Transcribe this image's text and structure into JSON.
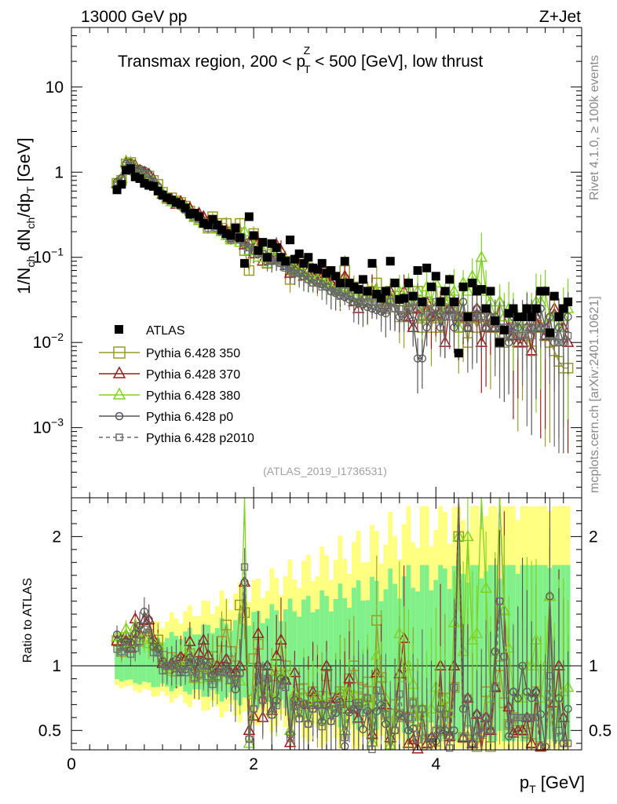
{
  "header": {
    "left": "13000 GeV pp",
    "right": "Z+Jet"
  },
  "side_labels": {
    "rivet": "Rivet 4.1.0, ≥ 100k events",
    "mcplots": "mcplots.cern.ch [arXiv:2401.10621]"
  },
  "watermark": "(ATLAS_2019_I1736531)",
  "colors": {
    "atlas": "#000000",
    "p350": "#9a9a2a",
    "p370": "#9b1c1c",
    "p380": "#7fd320",
    "p0": "#555555",
    "p2010": "#6b6b6b",
    "band_yellow": "#ffff80",
    "band_green": "#7ff08a"
  },
  "chart_data": {
    "type": "scatter",
    "title": "Transmax region, 200 < p_T^Z < 500 [GeV], low thrust",
    "title_parts": {
      "a": "Transmax region, 200 < p",
      "sub": "T",
      "sup": "Z",
      "b": " < 500 [GeV], low thrust"
    },
    "xlabel": "p_T [GeV]",
    "xlabel_parts": {
      "a": "p",
      "sub": "T",
      "b": " [GeV]"
    },
    "ylabel": "1/N_ch dN_ch/dp_T [GeV]",
    "ylabel_parts": {
      "a": "1/N",
      "s1": "ch",
      "b": " dN",
      "s2": "ch",
      "c": "/dp",
      "s3": "T",
      "d": " [GeV]"
    },
    "ratio_ylabel": "Ratio to ATLAS",
    "xlim": [
      0,
      5.6
    ],
    "ylim": [
      0.00015,
      50
    ],
    "ratio_ylim": [
      0.35,
      2.3
    ],
    "xticks": [
      0,
      2,
      4
    ],
    "yticks_main": [
      {
        "value": 10,
        "label": "10",
        "exp": ""
      },
      {
        "value": 1,
        "label": "1",
        "exp": ""
      },
      {
        "value": 0.1,
        "label": "10",
        "exp": "−1"
      },
      {
        "value": 0.01,
        "label": "10",
        "exp": "−2"
      },
      {
        "value": 0.001,
        "label": "10",
        "exp": "−3"
      }
    ],
    "yticks_ratio": [
      {
        "value": 2,
        "label": "2"
      },
      {
        "value": 1,
        "label": "1"
      },
      {
        "value": 0.5,
        "label": "0.5"
      }
    ],
    "x": [
      0.5,
      0.55,
      0.6,
      0.65,
      0.7,
      0.75,
      0.8,
      0.85,
      0.9,
      0.95,
      1.0,
      1.05,
      1.1,
      1.15,
      1.2,
      1.25,
      1.3,
      1.35,
      1.4,
      1.45,
      1.5,
      1.55,
      1.6,
      1.65,
      1.7,
      1.75,
      1.8,
      1.85,
      1.9,
      1.95,
      2.0,
      2.05,
      2.1,
      2.15,
      2.2,
      2.25,
      2.3,
      2.35,
      2.4,
      2.45,
      2.5,
      2.55,
      2.6,
      2.65,
      2.7,
      2.75,
      2.8,
      2.85,
      2.9,
      2.95,
      3.0,
      3.05,
      3.1,
      3.15,
      3.2,
      3.25,
      3.3,
      3.35,
      3.4,
      3.45,
      3.5,
      3.55,
      3.6,
      3.65,
      3.7,
      3.75,
      3.8,
      3.85,
      3.9,
      3.95,
      4.0,
      4.05,
      4.1,
      4.15,
      4.2,
      4.25,
      4.3,
      4.35,
      4.4,
      4.45,
      4.5,
      4.55,
      4.6,
      4.65,
      4.7,
      4.75,
      4.8,
      4.85,
      4.9,
      4.95,
      5.0,
      5.05,
      5.1,
      5.15,
      5.2,
      5.25,
      5.3,
      5.35,
      5.4,
      5.45
    ],
    "atlas": [
      0.62,
      0.72,
      1.05,
      1.1,
      0.88,
      0.84,
      0.74,
      0.7,
      0.68,
      0.6,
      0.54,
      0.5,
      0.47,
      0.44,
      0.42,
      0.38,
      0.32,
      0.33,
      0.3,
      0.25,
      0.24,
      0.28,
      0.24,
      0.21,
      0.19,
      0.18,
      0.22,
      0.17,
      0.085,
      0.3,
      0.18,
      0.12,
      0.15,
      0.1,
      0.145,
      0.13,
      0.1,
      0.09,
      0.16,
      0.095,
      0.11,
      0.085,
      0.1,
      0.075,
      0.072,
      0.085,
      0.065,
      0.07,
      0.06,
      0.05,
      0.09,
      0.05,
      0.045,
      0.042,
      0.055,
      0.04,
      0.085,
      0.037,
      0.033,
      0.04,
      0.09,
      0.05,
      0.032,
      0.033,
      0.05,
      0.035,
      0.07,
      0.03,
      0.075,
      0.045,
      0.06,
      0.03,
      0.04,
      0.055,
      0.03,
      0.0075,
      0.045,
      0.02,
      0.05,
      0.04,
      0.042,
      0.025,
      0.04,
      0.018,
      0.01,
      0.014,
      0.022,
      0.025,
      0.02,
      0.02,
      0.025,
      0.02,
      0.025,
      0.04,
      0.04,
      0.013,
      0.035,
      0.02,
      0.025,
      0.03
    ],
    "series": [
      {
        "name": "Pythia 6.428 350",
        "key": "p350",
        "marker": "square-open",
        "dash": false,
        "values": [
          0.74,
          0.8,
          1.25,
          1.3,
          1.05,
          1.0,
          0.95,
          0.9,
          0.8,
          0.72,
          0.58,
          0.49,
          0.5,
          0.46,
          0.44,
          0.4,
          0.35,
          0.3,
          0.28,
          0.26,
          0.22,
          0.3,
          0.22,
          0.25,
          0.25,
          0.2,
          0.22,
          0.25,
          0.12,
          0.07,
          0.19,
          0.14,
          0.12,
          0.085,
          0.14,
          0.12,
          0.09,
          0.09,
          0.055,
          0.07,
          0.09,
          0.07,
          0.075,
          0.06,
          0.055,
          0.065,
          0.06,
          0.05,
          0.045,
          0.04,
          0.07,
          0.045,
          0.045,
          0.035,
          0.045,
          0.035,
          0.04,
          0.05,
          0.03,
          0.025,
          0.04,
          0.035,
          0.02,
          0.02,
          0.03,
          0.025,
          0.04,
          0.015,
          0.03,
          0.015,
          0.025,
          0.015,
          0.03,
          0.025,
          0.025,
          0.015,
          0.02,
          0.01,
          0.02,
          0.015,
          0.02,
          0.02,
          0.015,
          0.015,
          0.01,
          0.01,
          0.012,
          0.015,
          0.01,
          0.01,
          0.012,
          0.008,
          0.02,
          0.015,
          0.012,
          0.01,
          0.008,
          0.006,
          0.005,
          0.005
        ]
      },
      {
        "name": "Pythia 6.428 370",
        "key": "p370",
        "marker": "triangle-open",
        "dash": false,
        "values": [
          0.74,
          0.85,
          1.3,
          1.25,
          1.2,
          1.05,
          1.0,
          0.95,
          0.82,
          0.7,
          0.55,
          0.5,
          0.48,
          0.42,
          0.45,
          0.4,
          0.38,
          0.3,
          0.33,
          0.3,
          0.26,
          0.25,
          0.24,
          0.21,
          0.2,
          0.17,
          0.21,
          0.17,
          0.14,
          0.15,
          0.11,
          0.15,
          0.09,
          0.1,
          0.095,
          0.14,
          0.12,
          0.08,
          0.065,
          0.09,
          0.08,
          0.06,
          0.07,
          0.06,
          0.055,
          0.06,
          0.065,
          0.05,
          0.045,
          0.04,
          0.06,
          0.045,
          0.03,
          0.025,
          0.04,
          0.03,
          0.04,
          0.035,
          0.03,
          0.028,
          0.04,
          0.03,
          0.03,
          0.04,
          0.02,
          0.015,
          0.025,
          0.02,
          0.03,
          0.02,
          0.02,
          0.03,
          0.01,
          0.025,
          0.03,
          0.02,
          0.02,
          0.015,
          0.02,
          0.025,
          0.01,
          0.015,
          0.02,
          0.015,
          0.03,
          0.02,
          0.015,
          0.012,
          0.01,
          0.01,
          0.015,
          0.008,
          0.02,
          0.015,
          0.012,
          0.02,
          0.025,
          0.02,
          0.015,
          0.01
        ]
      },
      {
        "name": "Pythia 6.428 380",
        "key": "p380",
        "marker": "triangle-open",
        "dash": false,
        "values": [
          0.76,
          0.85,
          1.35,
          1.3,
          1.15,
          1.0,
          0.9,
          0.82,
          0.78,
          0.7,
          0.57,
          0.5,
          0.45,
          0.44,
          0.42,
          0.39,
          0.35,
          0.3,
          0.27,
          0.25,
          0.24,
          0.25,
          0.22,
          0.2,
          0.18,
          0.16,
          0.2,
          0.15,
          0.2,
          0.12,
          0.14,
          0.1,
          0.12,
          0.085,
          0.11,
          0.1,
          0.095,
          0.085,
          0.08,
          0.075,
          0.07,
          0.065,
          0.06,
          0.055,
          0.055,
          0.05,
          0.05,
          0.045,
          0.04,
          0.04,
          0.045,
          0.04,
          0.035,
          0.03,
          0.04,
          0.03,
          0.035,
          0.04,
          0.03,
          0.03,
          0.035,
          0.03,
          0.04,
          0.03,
          0.05,
          0.03,
          0.04,
          0.02,
          0.045,
          0.03,
          0.05,
          0.02,
          0.03,
          0.035,
          0.04,
          0.015,
          0.05,
          0.04,
          0.06,
          0.05,
          0.1,
          0.04,
          0.03,
          0.02,
          0.03,
          0.02,
          0.025,
          0.02,
          0.015,
          0.015,
          0.025,
          0.02,
          0.03,
          0.03,
          0.04,
          0.02,
          0.02,
          0.015,
          0.02,
          0.025
        ]
      },
      {
        "name": "Pythia 6.428 p0",
        "key": "p0",
        "marker": "circle-open",
        "dash": false,
        "values": [
          0.77,
          0.85,
          1.25,
          1.3,
          1.1,
          1.1,
          1.05,
          0.95,
          0.78,
          0.68,
          0.56,
          0.5,
          0.47,
          0.46,
          0.41,
          0.37,
          0.34,
          0.32,
          0.31,
          0.26,
          0.24,
          0.26,
          0.23,
          0.2,
          0.19,
          0.17,
          0.18,
          0.16,
          0.14,
          0.13,
          0.12,
          0.12,
          0.11,
          0.1,
          0.09,
          0.095,
          0.09,
          0.08,
          0.075,
          0.07,
          0.065,
          0.06,
          0.055,
          0.05,
          0.05,
          0.048,
          0.045,
          0.04,
          0.038,
          0.036,
          0.034,
          0.032,
          0.03,
          0.029,
          0.028,
          0.026,
          0.025,
          0.024,
          0.023,
          0.022,
          0.03,
          0.025,
          0.02,
          0.02,
          0.025,
          0.018,
          0.0065,
          0.0065,
          0.015,
          0.02,
          0.025,
          0.015,
          0.02,
          0.025,
          0.015,
          0.02,
          0.03,
          0.015,
          0.02,
          0.025,
          0.02,
          0.015,
          0.02,
          0.02,
          0.015,
          0.015,
          0.01,
          0.02,
          0.015,
          0.02,
          0.02,
          0.015,
          0.02,
          0.025,
          0.015,
          0.02,
          0.01,
          0.015,
          0.01,
          0.02
        ]
      },
      {
        "name": "Pythia 6.428 p2010",
        "key": "p2010",
        "marker": "square-open-small",
        "dash": true,
        "values": [
          0.7,
          0.8,
          1.2,
          1.2,
          1.0,
          1.0,
          0.95,
          0.88,
          0.75,
          0.66,
          0.52,
          0.5,
          0.47,
          0.43,
          0.4,
          0.36,
          0.33,
          0.3,
          0.28,
          0.25,
          0.22,
          0.24,
          0.22,
          0.2,
          0.18,
          0.16,
          0.19,
          0.16,
          0.15,
          0.13,
          0.12,
          0.11,
          0.11,
          0.09,
          0.09,
          0.09,
          0.085,
          0.075,
          0.07,
          0.065,
          0.065,
          0.06,
          0.055,
          0.05,
          0.05,
          0.045,
          0.045,
          0.04,
          0.04,
          0.035,
          0.04,
          0.035,
          0.03,
          0.03,
          0.035,
          0.03,
          0.03,
          0.03,
          0.025,
          0.025,
          0.03,
          0.025,
          0.025,
          0.02,
          0.03,
          0.025,
          0.03,
          0.02,
          0.025,
          0.02,
          0.03,
          0.02,
          0.025,
          0.02,
          0.025,
          0.02,
          0.02,
          0.015,
          0.02,
          0.02,
          0.02,
          0.015,
          0.02,
          0.015,
          0.015,
          0.015,
          0.012,
          0.015,
          0.012,
          0.012,
          0.015,
          0.012,
          0.015,
          0.015,
          0.012,
          0.012,
          0.012,
          0.01,
          0.01,
          0.012
        ]
      }
    ],
    "legend": {
      "placement": "lower-left",
      "atlas_label": "ATLAS"
    }
  }
}
